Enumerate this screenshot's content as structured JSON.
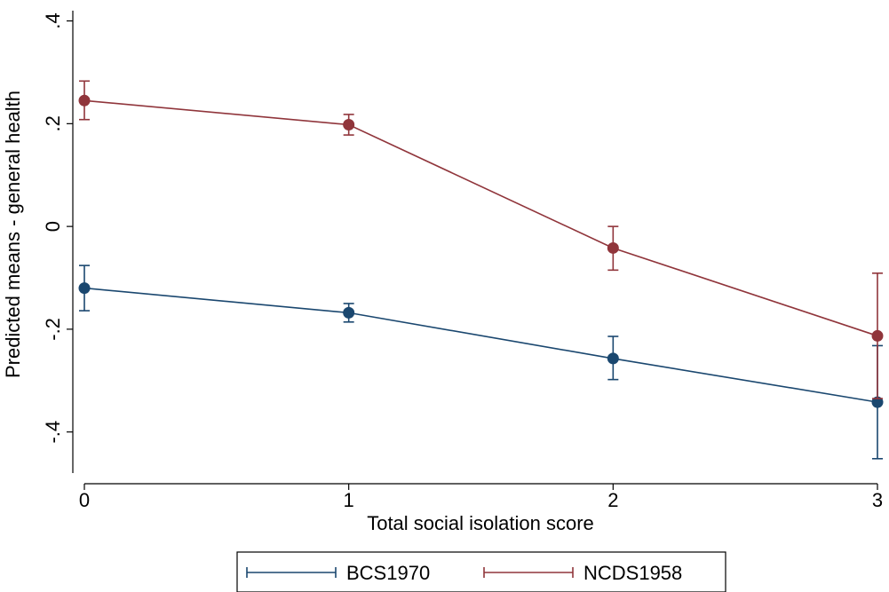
{
  "chart_data": {
    "type": "line",
    "title": "",
    "xlabel": "Total social isolation score",
    "ylabel": "Predicted means - general health",
    "x": [
      0,
      1,
      2,
      3
    ],
    "x_ticks": [
      "0",
      "1",
      "2",
      "3"
    ],
    "y_ticks": [
      {
        "value": 0.4,
        "label": ".4"
      },
      {
        "value": 0.2,
        "label": ".2"
      },
      {
        "value": 0,
        "label": "0"
      },
      {
        "value": -0.2,
        "label": "-.2"
      },
      {
        "value": -0.4,
        "label": "-.4"
      }
    ],
    "xlim": [
      0,
      3
    ],
    "ylim": [
      -0.48,
      0.42
    ],
    "grid": false,
    "legend_position": "bottom",
    "series": [
      {
        "name": "BCS1970",
        "color": "#1a476f",
        "values": [
          -0.12,
          -0.168,
          -0.257,
          -0.342
        ],
        "ci_low": [
          -0.164,
          -0.186,
          -0.298,
          -0.452
        ],
        "ci_high": [
          -0.076,
          -0.15,
          -0.214,
          -0.232
        ]
      },
      {
        "name": "NCDS1958",
        "color": "#90353b",
        "values": [
          0.245,
          0.198,
          -0.042,
          -0.213
        ],
        "ci_low": [
          0.208,
          0.178,
          -0.085,
          -0.335
        ],
        "ci_high": [
          0.283,
          0.218,
          0.0,
          -0.091
        ]
      }
    ]
  }
}
